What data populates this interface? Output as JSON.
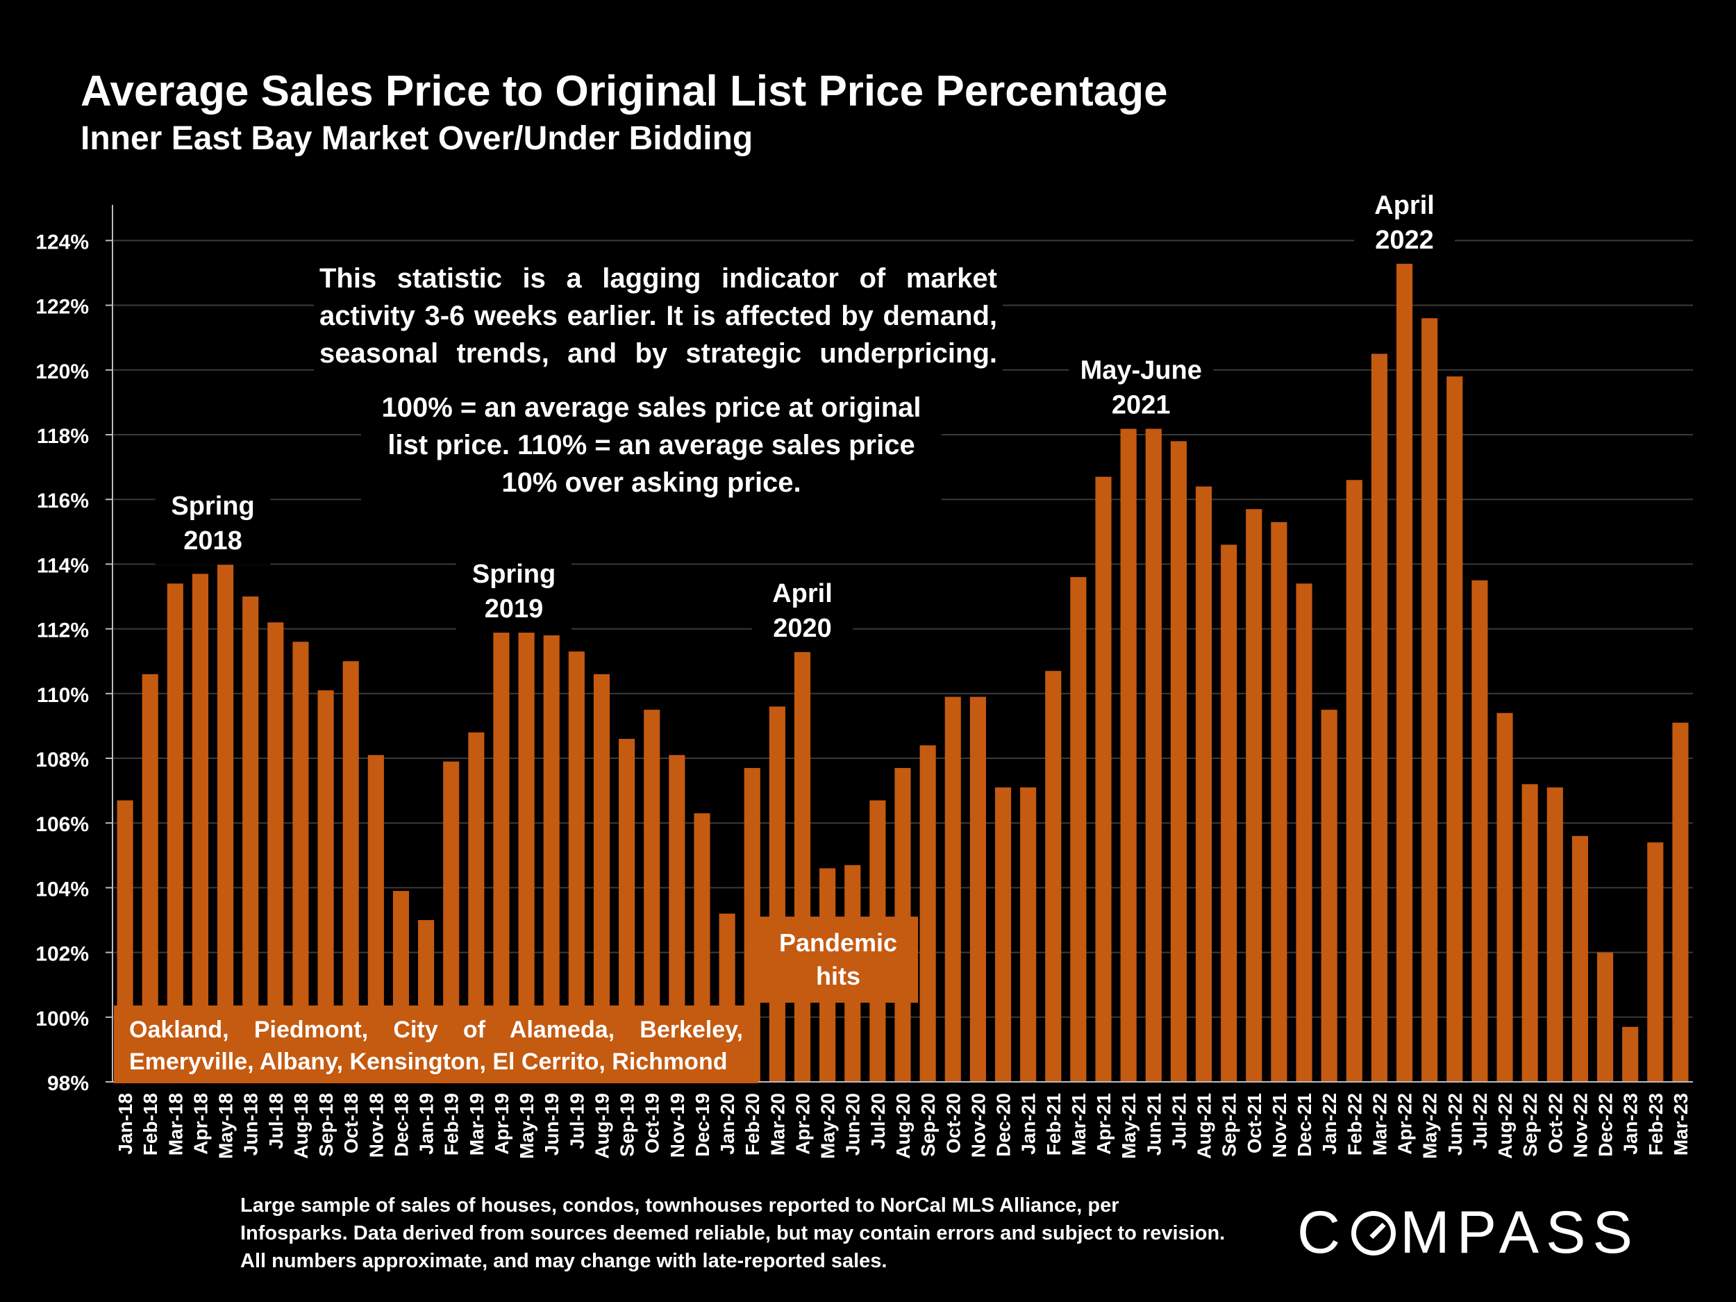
{
  "title": "Average Sales Price to Original List Price Percentage",
  "subtitle": "Inner East Bay Market Over/Under Bidding",
  "notes": {
    "lagging": "This statistic is a lagging indicator of market activity 3-6 weeks earlier. It is affected by demand, seasonal trends, and by strategic underpricing.",
    "definition": "100% = an average sales price at original list price. 110% = an average sales price 10% over asking price."
  },
  "cities": {
    "line1": "Oakland, Piedmont, City of Alameda, Berkeley,",
    "line2": "Emeryville, Albany, Kensington, El Cerrito, Richmond"
  },
  "pandemic_label": "Pandemic hits",
  "footnote": "Large sample of sales of houses, condos, townhouses reported to NorCal MLS Alliance, per Infosparks. Data derived from sources deemed reliable, but may contain errors and subject to revision. All numbers approximate, and may change with late-reported sales.",
  "logo": {
    "text": "COMPASS",
    "before": "C",
    "after": "MPASS"
  },
  "colors": {
    "bar": "#C55A11",
    "background": "#000000",
    "text": "#FFFFFF",
    "grid": "#3A3A3A"
  },
  "chart_data": {
    "type": "bar",
    "ylim": [
      98,
      124
    ],
    "yticks": [
      98,
      100,
      102,
      104,
      106,
      108,
      110,
      112,
      114,
      116,
      118,
      120,
      122,
      124
    ],
    "ytick_suffix": "%",
    "grid": true,
    "categories": [
      "Jan-18",
      "Feb-18",
      "Mar-18",
      "Apr-18",
      "May-18",
      "Jun-18",
      "Jul-18",
      "Aug-18",
      "Sep-18",
      "Oct-18",
      "Nov-18",
      "Dec-18",
      "Jan-19",
      "Feb-19",
      "Mar-19",
      "Apr-19",
      "May-19",
      "Jun-19",
      "Jul-19",
      "Aug-19",
      "Sep-19",
      "Oct-19",
      "Nov-19",
      "Dec-19",
      "Jan-20",
      "Feb-20",
      "Mar-20",
      "Apr-20",
      "May-20",
      "Jun-20",
      "Jul-20",
      "Aug-20",
      "Sep-20",
      "Oct-20",
      "Nov-20",
      "Dec-20",
      "Jan-21",
      "Feb-21",
      "Mar-21",
      "Apr-21",
      "May-21",
      "Jun-21",
      "Jul-21",
      "Aug-21",
      "Sep-21",
      "Oct-21",
      "Nov-21",
      "Dec-21",
      "Jan-22",
      "Feb-22",
      "Mar-22",
      "Apr-22",
      "May-22",
      "Jun-22",
      "Jul-22",
      "Aug-22",
      "Sep-22",
      "Oct-22",
      "Nov-22",
      "Dec-22",
      "Jan-23",
      "Feb-23",
      "Mar-23"
    ],
    "values": [
      106.7,
      110.6,
      113.4,
      113.7,
      114.1,
      113.0,
      112.2,
      111.6,
      110.1,
      111.0,
      108.1,
      103.9,
      103.0,
      107.9,
      108.8,
      111.9,
      112.0,
      111.8,
      111.3,
      110.6,
      108.6,
      109.5,
      108.1,
      106.3,
      103.2,
      107.7,
      109.6,
      111.4,
      104.6,
      104.7,
      106.7,
      107.7,
      108.4,
      109.9,
      109.9,
      107.1,
      107.1,
      110.7,
      113.6,
      116.7,
      118.4,
      118.4,
      117.8,
      116.4,
      114.6,
      115.7,
      115.3,
      113.4,
      109.5,
      116.6,
      120.5,
      123.5,
      121.6,
      119.8,
      113.5,
      109.4,
      107.2,
      107.1,
      105.6,
      102.0,
      99.7,
      105.4,
      109.1
    ],
    "annotations": [
      {
        "lines": [
          "Spring",
          "2018"
        ],
        "index": 3.5,
        "y_top": 116.3
      },
      {
        "lines": [
          "Spring",
          "2019"
        ],
        "index": 15.5,
        "y_top": 114.2
      },
      {
        "lines": [
          "April",
          "2020"
        ],
        "index": 27.0,
        "y_top": 113.6
      },
      {
        "lines": [
          "May-June",
          "2021"
        ],
        "index": 40.5,
        "y_top": 120.5
      },
      {
        "lines": [
          "April",
          "2022"
        ],
        "index": 51.0,
        "y_top": 125.6
      }
    ]
  }
}
